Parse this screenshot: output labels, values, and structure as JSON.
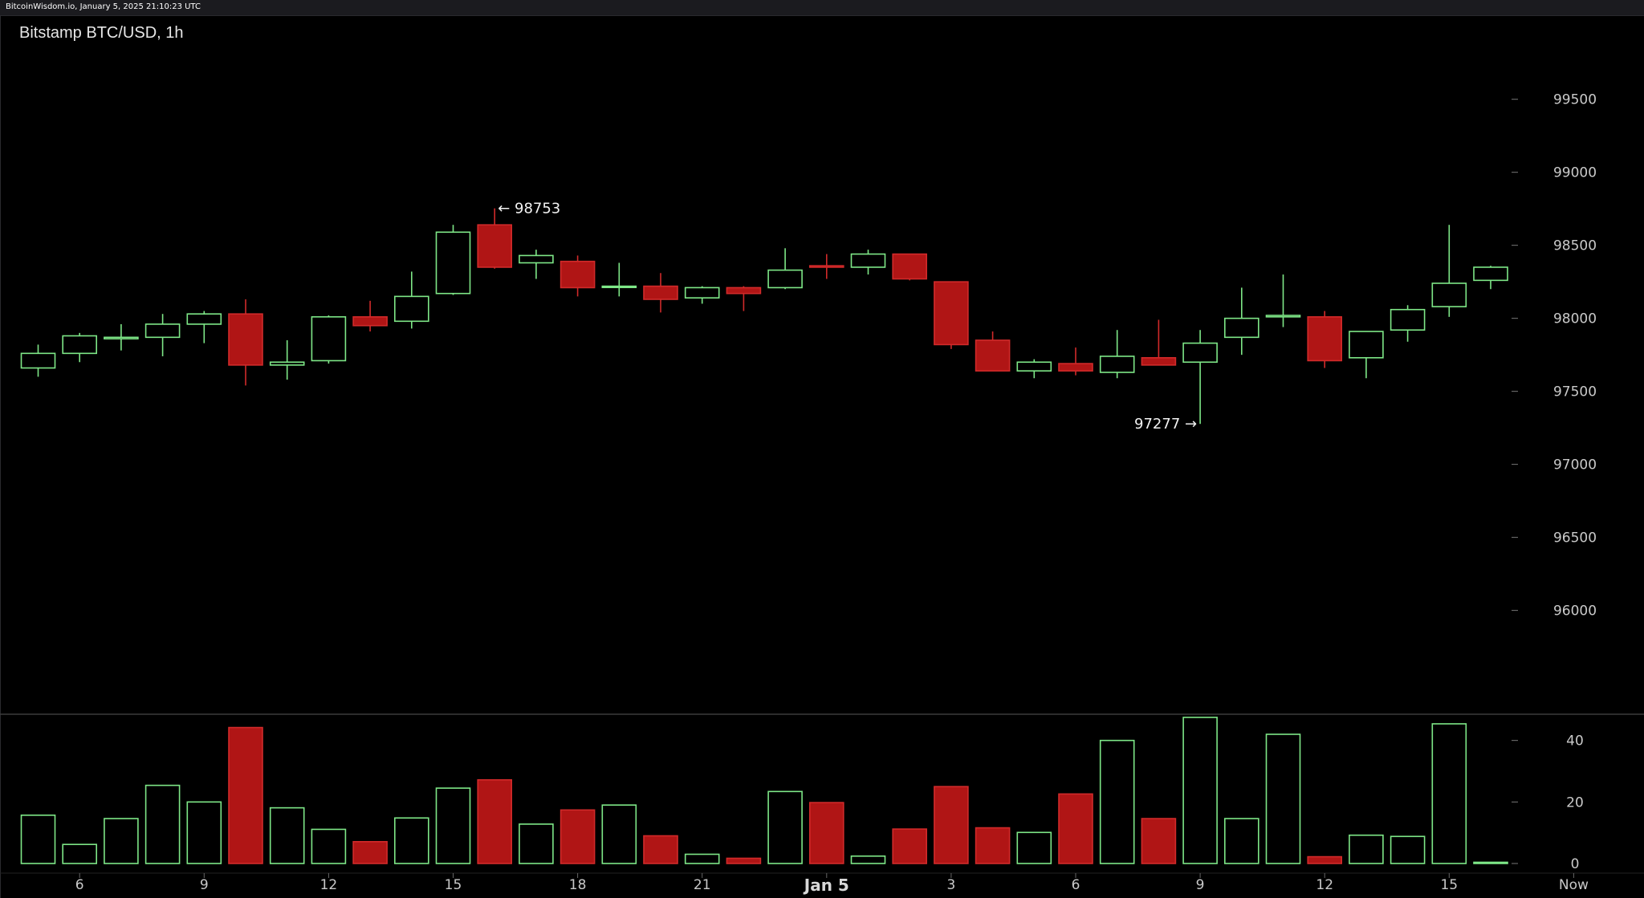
{
  "header": {
    "source_text": "BitcoinWisdom.io, January 5, 2025 21:10:23 UTC"
  },
  "colors": {
    "up": "#7ee787",
    "down": "#b01515",
    "down_stroke": "#d12a2a",
    "axis_text": "#c9c9c9",
    "separator": "#3a3a3a"
  },
  "chart_data": {
    "type": "candlestick",
    "title": "Bitstamp BTC/USD, 1h",
    "price_axis": {
      "ylim": [
        95300,
        99850
      ],
      "ticks": [
        96000,
        96500,
        97000,
        97500,
        98000,
        98500,
        99000,
        99500
      ]
    },
    "volume_axis": {
      "ylim": [
        0,
        48
      ],
      "ticks": [
        0,
        20,
        40
      ]
    },
    "x_labels": [
      {
        "i": 1,
        "label": "6"
      },
      {
        "i": 4,
        "label": "9"
      },
      {
        "i": 7,
        "label": "12"
      },
      {
        "i": 10,
        "label": "15"
      },
      {
        "i": 13,
        "label": "18"
      },
      {
        "i": 16,
        "label": "21"
      },
      {
        "i": 19,
        "label": "Jan 5",
        "bold": true
      },
      {
        "i": 22,
        "label": "3"
      },
      {
        "i": 25,
        "label": "6"
      },
      {
        "i": 28,
        "label": "9"
      },
      {
        "i": 31,
        "label": "12"
      },
      {
        "i": 34,
        "label": "15"
      },
      {
        "i": 37,
        "label": "Now"
      }
    ],
    "candles": [
      {
        "o": 97660,
        "h": 97820,
        "l": 97600,
        "c": 97760,
        "v": 15.7
      },
      {
        "o": 97760,
        "h": 97900,
        "l": 97700,
        "c": 97880,
        "v": 6.2
      },
      {
        "o": 97860,
        "h": 97960,
        "l": 97780,
        "c": 97870,
        "v": 14.6
      },
      {
        "o": 97870,
        "h": 98030,
        "l": 97740,
        "c": 97960,
        "v": 25.4
      },
      {
        "o": 97960,
        "h": 98050,
        "l": 97830,
        "c": 98030,
        "v": 20.0
      },
      {
        "o": 98030,
        "h": 98130,
        "l": 97540,
        "c": 97680,
        "v": 44.2
      },
      {
        "o": 97680,
        "h": 97850,
        "l": 97580,
        "c": 97700,
        "v": 18.1
      },
      {
        "o": 97710,
        "h": 98020,
        "l": 97690,
        "c": 98010,
        "v": 11.1
      },
      {
        "o": 98010,
        "h": 98120,
        "l": 97910,
        "c": 97950,
        "v": 7.1
      },
      {
        "o": 97980,
        "h": 98320,
        "l": 97930,
        "c": 98150,
        "v": 14.8
      },
      {
        "o": 98170,
        "h": 98640,
        "l": 98160,
        "c": 98590,
        "v": 24.5
      },
      {
        "o": 98640,
        "h": 98753,
        "l": 98340,
        "c": 98350,
        "v": 27.2
      },
      {
        "o": 98380,
        "h": 98470,
        "l": 98270,
        "c": 98430,
        "v": 12.8
      },
      {
        "o": 98390,
        "h": 98430,
        "l": 98150,
        "c": 98210,
        "v": 17.4
      },
      {
        "o": 98220,
        "h": 98380,
        "l": 98150,
        "c": 98220,
        "v": 19.0
      },
      {
        "o": 98220,
        "h": 98310,
        "l": 98040,
        "c": 98130,
        "v": 9.0
      },
      {
        "o": 98140,
        "h": 98220,
        "l": 98100,
        "c": 98210,
        "v": 3.0
      },
      {
        "o": 98210,
        "h": 98220,
        "l": 98050,
        "c": 98170,
        "v": 1.7
      },
      {
        "o": 98210,
        "h": 98480,
        "l": 98200,
        "c": 98330,
        "v": 23.4
      },
      {
        "o": 98360,
        "h": 98440,
        "l": 98270,
        "c": 98350,
        "v": 19.8
      },
      {
        "o": 98350,
        "h": 98470,
        "l": 98300,
        "c": 98440,
        "v": 2.4
      },
      {
        "o": 98440,
        "h": 98440,
        "l": 98260,
        "c": 98270,
        "v": 11.2
      },
      {
        "o": 98250,
        "h": 98250,
        "l": 97790,
        "c": 97820,
        "v": 25.0
      },
      {
        "o": 97850,
        "h": 97910,
        "l": 97640,
        "c": 97640,
        "v": 11.6
      },
      {
        "o": 97640,
        "h": 97720,
        "l": 97590,
        "c": 97700,
        "v": 10.1
      },
      {
        "o": 97690,
        "h": 97800,
        "l": 97610,
        "c": 97640,
        "v": 22.6
      },
      {
        "o": 97630,
        "h": 97920,
        "l": 97590,
        "c": 97740,
        "v": 40.0
      },
      {
        "o": 97730,
        "h": 97990,
        "l": 97680,
        "c": 97680,
        "v": 14.6
      },
      {
        "o": 97700,
        "h": 97920,
        "l": 97277,
        "c": 97830,
        "v": 47.5
      },
      {
        "o": 97870,
        "h": 98210,
        "l": 97750,
        "c": 98000,
        "v": 14.6
      },
      {
        "o": 98010,
        "h": 98300,
        "l": 97940,
        "c": 98020,
        "v": 42.0
      },
      {
        "o": 98010,
        "h": 98050,
        "l": 97660,
        "c": 97710,
        "v": 2.2
      },
      {
        "o": 97730,
        "h": 97910,
        "l": 97590,
        "c": 97910,
        "v": 9.2
      },
      {
        "o": 97920,
        "h": 98090,
        "l": 97840,
        "c": 98060,
        "v": 8.8
      },
      {
        "o": 98080,
        "h": 98640,
        "l": 98010,
        "c": 98240,
        "v": 45.4
      },
      {
        "o": 98260,
        "h": 98360,
        "l": 98200,
        "c": 98350,
        "v": 0.4
      }
    ],
    "annotations": [
      {
        "i": 11,
        "price": 98753,
        "text": "← 98753",
        "side": "right"
      },
      {
        "i": 28,
        "price": 97277,
        "text": "97277 →",
        "side": "left"
      }
    ]
  }
}
